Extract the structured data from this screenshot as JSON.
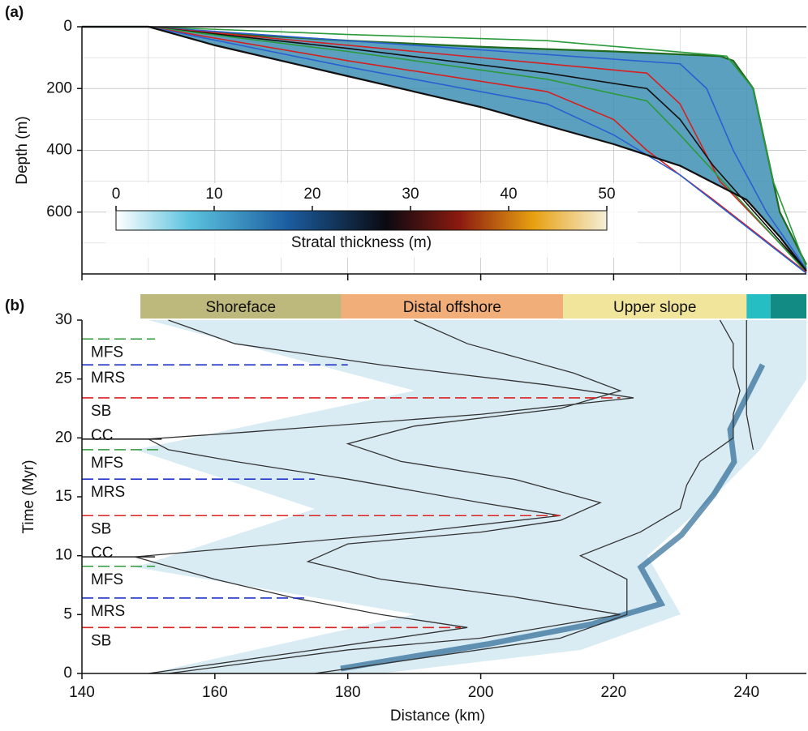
{
  "chart_data": [
    {
      "type": "cross-section",
      "panel_label": "(a)",
      "ylabel": "Depth (m)",
      "xlim": [
        140,
        249
      ],
      "xticks": [
        140,
        160,
        180,
        200,
        220,
        240
      ],
      "xminorticks": [
        150,
        170,
        190,
        210,
        230
      ],
      "ylim": [
        800,
        0
      ],
      "yticks": [
        0,
        200,
        400,
        600
      ],
      "yminorticks": [
        100,
        300,
        500,
        700
      ],
      "grid": true,
      "fill_color": "#3f8fb5",
      "series": [
        {
          "color": "#1f6a1f",
          "x": [
            140,
            150,
            160,
            180,
            200,
            220,
            236,
            238,
            241,
            243,
            245,
            249
          ],
          "values": [
            0,
            0,
            20,
            45,
            65,
            80,
            95,
            110,
            200,
            400,
            600,
            770
          ]
        },
        {
          "color": "#2a9a3a",
          "x": [
            150,
            180,
            210,
            237,
            241,
            244,
            249
          ],
          "values": [
            0,
            25,
            45,
            95,
            200,
            500,
            780
          ]
        },
        {
          "color": "#2b5fd0",
          "x": [
            150,
            180,
            210,
            230,
            234,
            238,
            243,
            249
          ],
          "values": [
            0,
            45,
            90,
            120,
            200,
            400,
            600,
            785
          ]
        },
        {
          "color": "#d42020",
          "x": [
            150,
            170,
            200,
            225,
            230,
            236,
            249
          ],
          "values": [
            0,
            40,
            100,
            150,
            250,
            500,
            790
          ]
        },
        {
          "color": "#111111",
          "x": [
            150,
            180,
            210,
            225,
            230,
            235,
            249
          ],
          "values": [
            0,
            70,
            150,
            200,
            300,
            450,
            790
          ]
        },
        {
          "color": "#2a9a3a",
          "x": [
            150,
            180,
            210,
            225,
            230,
            249
          ],
          "values": [
            0,
            80,
            170,
            240,
            350,
            795
          ]
        },
        {
          "color": "#d42020",
          "x": [
            150,
            180,
            210,
            220,
            225,
            235,
            249
          ],
          "values": [
            0,
            110,
            210,
            300,
            400,
            560,
            795
          ]
        },
        {
          "color": "#2b5fd0",
          "x": [
            150,
            180,
            210,
            220,
            230,
            249
          ],
          "values": [
            0,
            130,
            250,
            350,
            480,
            798
          ]
        },
        {
          "color": "#111111",
          "x": [
            140,
            150,
            160,
            180,
            200,
            220,
            230,
            240,
            245,
            249
          ],
          "values": [
            0,
            0,
            60,
            160,
            260,
            380,
            450,
            560,
            680,
            790
          ]
        }
      ],
      "colorbar": {
        "label": "Stratal thickness (m)",
        "lim": [
          0,
          50
        ],
        "ticks": [
          0,
          10,
          20,
          30,
          40,
          50
        ]
      }
    },
    {
      "type": "line",
      "panel_label": "(b)",
      "xlabel": "Distance (km)",
      "ylabel": "Time (Myr)",
      "xlim": [
        140,
        249
      ],
      "xticks": [
        140,
        160,
        180,
        200,
        220,
        240
      ],
      "ylim": [
        0,
        30
      ],
      "yticks": [
        0,
        5,
        10,
        15,
        20,
        25,
        30
      ],
      "zones": {
        "categories": [
          "Shoreface",
          "Distal offshore",
          "Upper slope",
          null,
          null
        ],
        "bounds": [
          148.8,
          179,
          212.4,
          240,
          243.6,
          249
        ],
        "colors": [
          "#bdb87c",
          "#f2ae78",
          "#f1e49b",
          "#25bec2",
          "#138b85"
        ]
      },
      "series": [
        {
          "color": "#333333",
          "x": [
            150,
            175,
            198,
            185,
            172,
            160,
            153,
            148,
            160,
            190,
            212,
            200,
            180,
            163,
            153,
            150,
            165,
            200,
            223,
            210,
            185,
            163,
            153
          ],
          "values": [
            0,
            2,
            3.9,
            5,
            6.4,
            8,
            9.1,
            9.9,
            10.5,
            12,
            13.4,
            14.5,
            16.5,
            18,
            19,
            19.9,
            20.5,
            22,
            23.4,
            24.5,
            26.2,
            28,
            30
          ]
        },
        {
          "color": "#333333",
          "x": [
            153,
            180,
            200,
            221,
            205,
            185,
            174,
            180,
            200,
            212,
            218,
            205,
            188,
            180,
            190,
            212,
            221,
            214,
            198,
            190
          ],
          "values": [
            0,
            2,
            3,
            5,
            6.5,
            8,
            9.5,
            11,
            12,
            13,
            14.5,
            16.5,
            18,
            19.5,
            21,
            22.5,
            24,
            25.5,
            28,
            30
          ]
        },
        {
          "color": "#333333",
          "x": [
            175,
            212,
            222,
            222,
            215,
            224,
            230,
            231,
            233,
            238,
            238,
            239,
            238,
            238,
            236
          ],
          "values": [
            0,
            3,
            5,
            8,
            10,
            12,
            14,
            16,
            18,
            20,
            22,
            24,
            26,
            28,
            30
          ]
        },
        {
          "color": "#333333",
          "x": [
            241,
            240,
            240,
            240,
            240,
            240
          ],
          "values": [
            19,
            22,
            24,
            26,
            28,
            30
          ]
        }
      ],
      "horizons": [
        {
          "label": "MFS",
          "value": 28.4,
          "x_end": 151,
          "color": "#2a9a3a",
          "style": "dashed"
        },
        {
          "label": "MRS",
          "value": 26.2,
          "x_end": 180,
          "color": "#2233cc",
          "style": "dashed"
        },
        {
          "label": "SB",
          "value": 23.4,
          "x_end": 221,
          "color": "#dd2222",
          "style": "dashed"
        },
        {
          "label": "CC",
          "value": 19.9,
          "x_end": 152,
          "color": "#222222",
          "style": "solid"
        },
        {
          "label": "MFS",
          "value": 19,
          "x_end": 152,
          "color": "#2a9a3a",
          "style": "dashed"
        },
        {
          "label": "MRS",
          "value": 16.5,
          "x_end": 175,
          "color": "#2233cc",
          "style": "dashed"
        },
        {
          "label": "SB",
          "value": 13.4,
          "x_end": 212,
          "color": "#dd2222",
          "style": "dashed"
        },
        {
          "label": "CC",
          "value": 9.9,
          "x_end": 151,
          "color": "#222222",
          "style": "solid"
        },
        {
          "label": "MFS",
          "value": 9.1,
          "x_end": 151,
          "color": "#2a9a3a",
          "style": "dashed"
        },
        {
          "label": "MRS",
          "value": 6.4,
          "x_end": 174,
          "color": "#2233cc",
          "style": "dashed"
        },
        {
          "label": "SB",
          "value": 3.9,
          "x_end": 197,
          "color": "#dd2222",
          "style": "dashed"
        }
      ]
    }
  ]
}
